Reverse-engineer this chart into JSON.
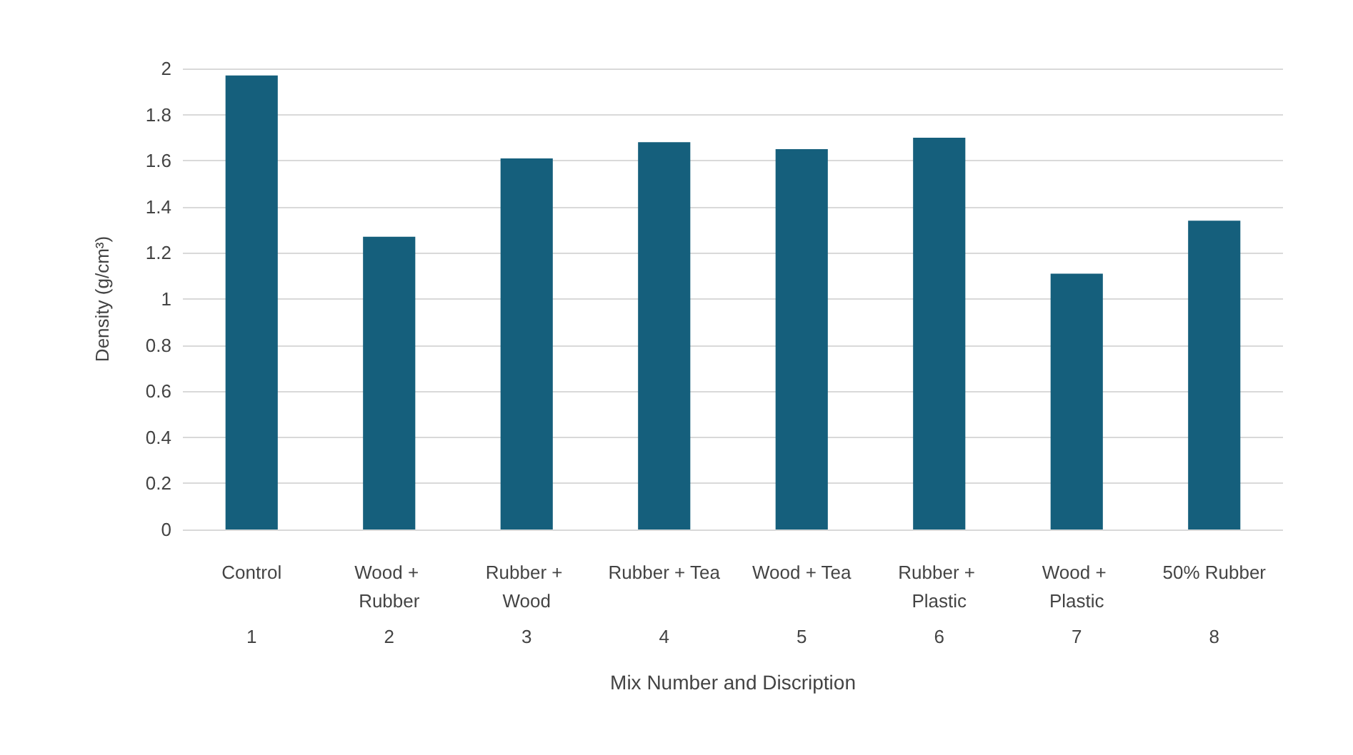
{
  "chart_data": {
    "type": "bar",
    "xlabel": "Mix Number and Discription",
    "ylabel": "Density (g/cm³)",
    "categories": [
      "Control",
      "Wood + Rubber",
      "Rubber + Wood",
      "Rubber + Tea",
      "Wood + Tea",
      "Rubber + Plastic",
      "Wood + Plastic",
      "50% Rubber"
    ],
    "values": [
      1.97,
      1.27,
      1.61,
      1.68,
      1.65,
      1.7,
      1.11,
      1.34
    ],
    "color": "#155f7c",
    "ylim": [
      0,
      2
    ],
    "yticks": [
      0,
      0.2,
      0.4,
      0.6,
      0.8,
      1,
      1.2,
      1.4,
      1.6,
      1.8,
      2
    ],
    "grid": "y",
    "annotations": [
      "1",
      "2",
      "3",
      "4",
      "5",
      "6",
      "7",
      "8"
    ]
  }
}
